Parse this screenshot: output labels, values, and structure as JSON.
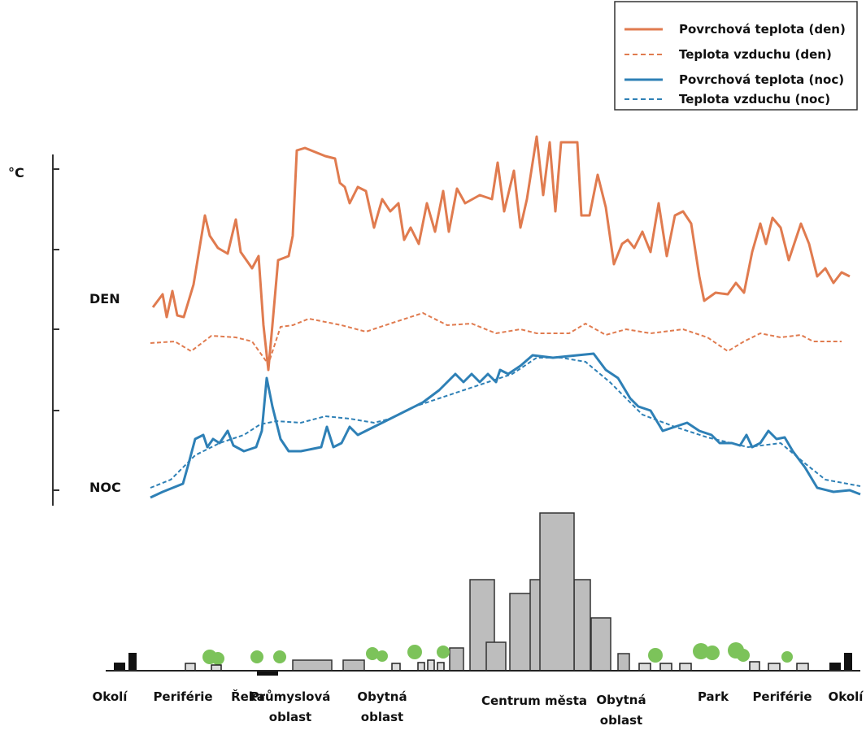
{
  "legend": {
    "items": [
      {
        "label": "Povrchová teplota (den)"
      },
      {
        "label": "Teplota vzduchu (den)"
      },
      {
        "label": "Povrchová teplota (noc)"
      },
      {
        "label": "Teplota vzduchu (noc)"
      }
    ]
  },
  "axis": {
    "unit": "°C"
  },
  "labels": {
    "day": "DEN",
    "night": "NOC"
  },
  "zones": [
    {
      "lines": [
        "Okolí"
      ]
    },
    {
      "lines": [
        "Periférie"
      ]
    },
    {
      "lines": [
        "Řeka"
      ]
    },
    {
      "lines": [
        "Průmyslová",
        "oblast"
      ]
    },
    {
      "lines": [
        "Obytná",
        "oblast"
      ]
    },
    {
      "lines": [
        "Centrum města"
      ]
    },
    {
      "lines": [
        "Obytná",
        "oblast"
      ]
    },
    {
      "lines": [
        "Park"
      ]
    },
    {
      "lines": [
        "Periférie"
      ]
    },
    {
      "lines": [
        "Okolí"
      ]
    }
  ]
}
